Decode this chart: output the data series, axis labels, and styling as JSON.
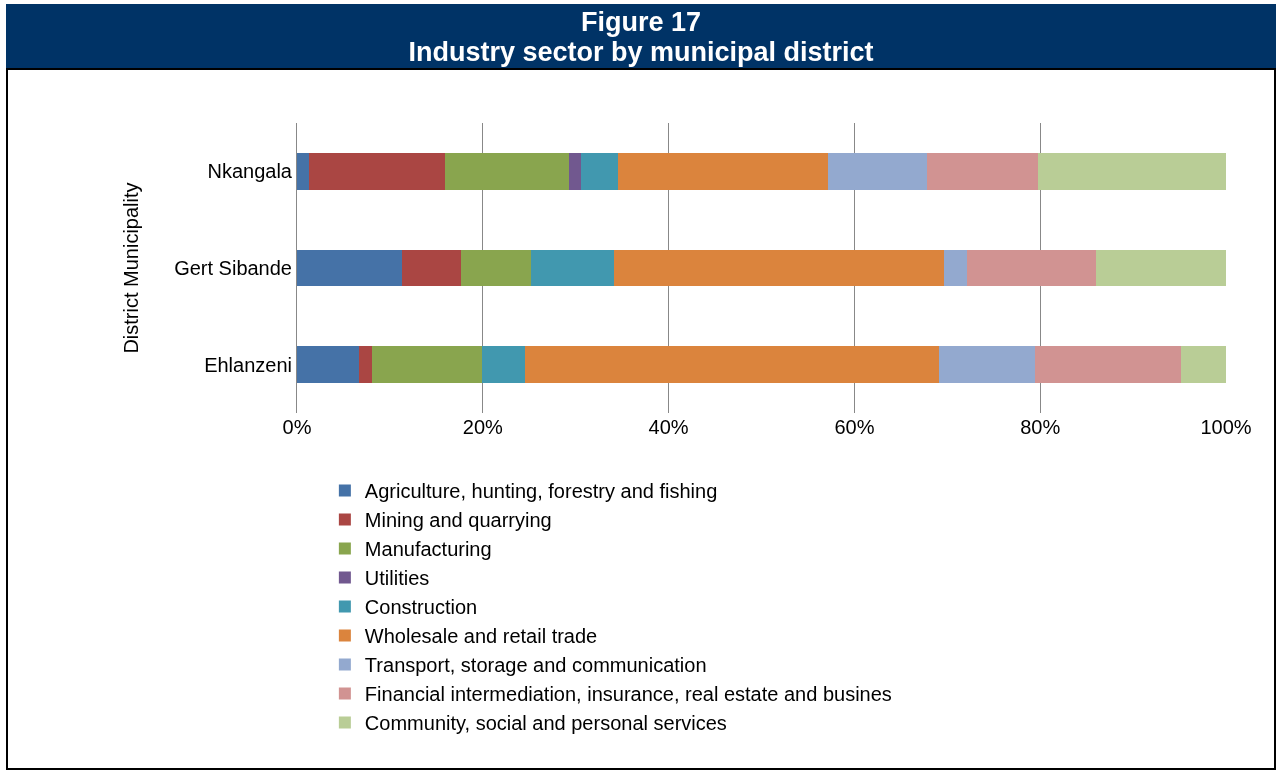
{
  "chart_data": {
    "type": "bar",
    "orientation": "horizontal",
    "stacked": true,
    "title": "Figure 17",
    "subtitle": "Industry sector by municipal district",
    "ylabel": "District Municipality",
    "categories": [
      "Nkangala",
      "Gert Sibande",
      "Ehlanzeni"
    ],
    "series": [
      {
        "name": "Agriculture, hunting, forestry and fishing",
        "color": "#4572a7",
        "values": [
          1.3,
          11.3,
          6.7
        ]
      },
      {
        "name": "Mining and quarrying",
        "color": "#aa4643",
        "values": [
          14.6,
          6.3,
          1.4
        ]
      },
      {
        "name": "Manufacturing",
        "color": "#89a54e",
        "values": [
          13.4,
          7.6,
          11.8
        ]
      },
      {
        "name": "Utilities",
        "color": "#71588f",
        "values": [
          1.3,
          0,
          0
        ]
      },
      {
        "name": "Construction",
        "color": "#4198af",
        "values": [
          3.9,
          8.9,
          4.6
        ]
      },
      {
        "name": "Wholesale and retail trade",
        "color": "#db843d",
        "values": [
          22.7,
          35.5,
          44.6
        ]
      },
      {
        "name": "Transport, storage and communication",
        "color": "#93a9cf",
        "values": [
          10.6,
          2.5,
          10.3
        ]
      },
      {
        "name": "Financial intermediation, insurance, real estate and busines",
        "color": "#d19392",
        "values": [
          12.0,
          13.9,
          15.8
        ]
      },
      {
        "name": "Community, social and personal services",
        "color": "#b9cd96",
        "values": [
          20.2,
          14.0,
          4.8
        ]
      }
    ],
    "xlim": [
      0,
      100
    ],
    "xticks": [
      {
        "value": 0,
        "label": "0%"
      },
      {
        "value": 20,
        "label": "20%"
      },
      {
        "value": 40,
        "label": "40%"
      },
      {
        "value": 60,
        "label": "60%"
      },
      {
        "value": 80,
        "label": "80%"
      },
      {
        "value": 100,
        "label": "100%"
      }
    ],
    "grid": "x",
    "legend": "bottom"
  }
}
